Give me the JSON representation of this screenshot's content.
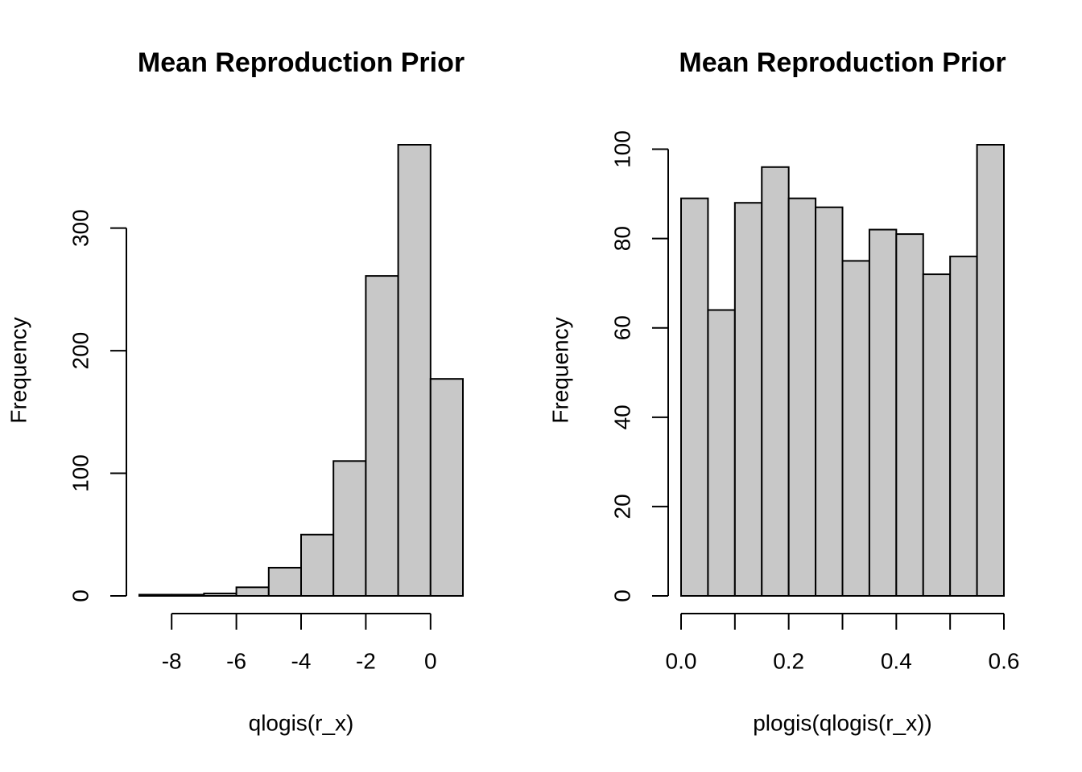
{
  "chart_data": [
    {
      "type": "histogram",
      "title": "Mean Reproduction Prior",
      "x_label": "qlogis(r_x)",
      "y_label": "Frequency",
      "bins": [
        -9,
        -8,
        -7,
        -6,
        -5,
        -4,
        -3,
        -2,
        -1,
        0,
        1
      ],
      "values": [
        1,
        1,
        2,
        7,
        23,
        50,
        110,
        261,
        368,
        177
      ],
      "color": "#c8c8c8",
      "xlim": [
        -9,
        1
      ],
      "xticks": [
        -8,
        -6,
        -4,
        -2,
        0
      ],
      "ylim": [
        0,
        368
      ],
      "yticks": [
        0,
        100,
        200,
        300
      ]
    },
    {
      "type": "histogram",
      "title": "Mean Reproduction Prior",
      "x_label": "plogis(qlogis(r_x))",
      "y_label": "Frequency",
      "bins": [
        0,
        0.05,
        0.1,
        0.15,
        0.2,
        0.25,
        0.3,
        0.35,
        0.4,
        0.45,
        0.5,
        0.55,
        0.6
      ],
      "values": [
        89,
        64,
        88,
        96,
        89,
        87,
        75,
        82,
        81,
        72,
        76,
        101
      ],
      "color": "#c8c8c8",
      "xlim": [
        0,
        0.6
      ],
      "xticks": [
        {
          "value": 0,
          "label": "0.0"
        },
        0.2,
        0.4,
        0.6
      ],
      "xminor_ticks": [
        0.1,
        0.3,
        0.5
      ],
      "ylim": [
        0,
        101
      ],
      "yticks": [
        0,
        20,
        40,
        60,
        80,
        100
      ]
    }
  ]
}
